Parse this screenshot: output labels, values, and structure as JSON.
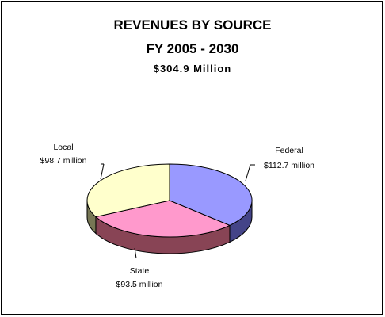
{
  "chart_data": {
    "type": "pie",
    "title": "REVENUES BY SOURCE",
    "subtitle": "FY 2005 - 2030",
    "total": "$304.9 Million",
    "slices": [
      {
        "name": "Federal",
        "value": 112.7,
        "label": "$112.7 million",
        "color": "#9999ff",
        "side_color": "#444488"
      },
      {
        "name": "State",
        "value": 93.5,
        "label": "$93.5 million",
        "color": "#ff99cc",
        "side_color": "#884455"
      },
      {
        "name": "Local",
        "value": 98.7,
        "label": "$98.7 million",
        "color": "#ffffcc",
        "side_color": "#777755"
      }
    ]
  }
}
